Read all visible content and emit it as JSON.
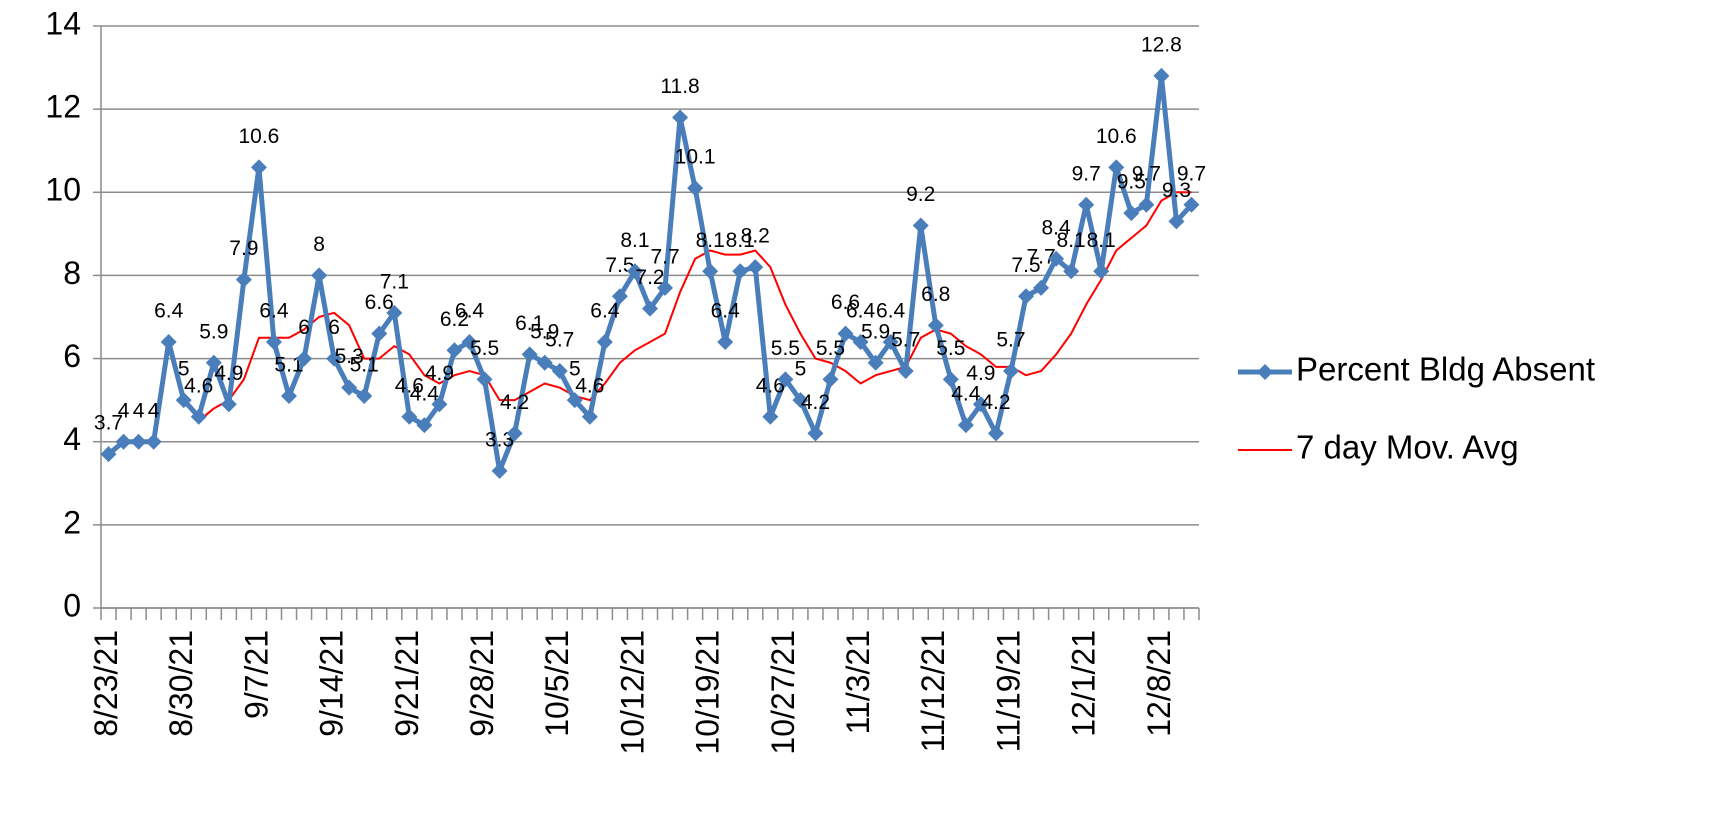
{
  "chart_data": {
    "type": "line",
    "categories": [
      "8/23/21",
      null,
      null,
      null,
      null,
      "8/30/21",
      null,
      null,
      null,
      null,
      "9/7/21",
      null,
      null,
      null,
      null,
      "9/14/21",
      null,
      null,
      null,
      null,
      "9/21/21",
      null,
      null,
      null,
      null,
      "9/28/21",
      null,
      null,
      null,
      null,
      "10/5/21",
      null,
      null,
      null,
      null,
      "10/12/21",
      null,
      null,
      null,
      null,
      "10/19/21",
      null,
      null,
      null,
      null,
      "10/27/21",
      null,
      null,
      null,
      null,
      "11/3/21",
      null,
      null,
      null,
      null,
      "11/12/21",
      null,
      null,
      null,
      null,
      "11/19/21",
      null,
      null,
      null,
      null,
      "12/1/21",
      null,
      null,
      null,
      null,
      "12/8/21",
      null,
      null
    ],
    "series": [
      {
        "name": "Percent Bldg Absent",
        "color": "#4a7ebb",
        "marker": "diamond",
        "data_labels": true,
        "values": [
          3.7,
          4,
          4,
          4,
          6.4,
          5,
          4.6,
          5.9,
          4.9,
          7.9,
          10.6,
          6.4,
          5.1,
          6,
          8,
          6,
          5.3,
          5.1,
          6.6,
          7.1,
          4.6,
          4.4,
          4.9,
          6.2,
          6.4,
          5.5,
          3.3,
          4.2,
          6.1,
          5.9,
          5.7,
          5,
          4.6,
          6.4,
          7.5,
          8.1,
          7.2,
          7.7,
          11.8,
          10.1,
          8.1,
          6.4,
          8.1,
          8.2,
          4.6,
          5.5,
          5,
          4.2,
          5.5,
          6.6,
          6.4,
          5.9,
          6.4,
          5.7,
          9.2,
          6.8,
          5.5,
          4.4,
          4.9,
          4.2,
          5.7,
          7.5,
          7.7,
          8.4,
          8.1,
          9.7,
          8.1,
          10.6,
          9.5,
          9.7,
          12.8,
          9.3,
          9.7
        ]
      },
      {
        "name": "7 day Mov. Avg",
        "color": "#ff0000",
        "marker": "none",
        "data_labels": false,
        "values": [
          null,
          null,
          null,
          null,
          null,
          null,
          4.5,
          4.8,
          5.0,
          5.5,
          6.5,
          6.5,
          6.5,
          6.7,
          7.0,
          7.1,
          6.8,
          6.0,
          6.0,
          6.3,
          6.1,
          5.6,
          5.4,
          5.6,
          5.7,
          5.6,
          5.0,
          5.0,
          5.2,
          5.4,
          5.3,
          5.1,
          5.0,
          5.4,
          5.9,
          6.2,
          6.4,
          6.6,
          7.6,
          8.4,
          8.6,
          8.5,
          8.5,
          8.6,
          8.2,
          7.3,
          6.6,
          6.0,
          5.9,
          5.7,
          5.4,
          5.6,
          5.7,
          5.8,
          6.5,
          6.7,
          6.6,
          6.3,
          6.1,
          5.8,
          5.8,
          5.6,
          5.7,
          6.1,
          6.6,
          7.3,
          7.9,
          8.6,
          8.9,
          9.2,
          9.8,
          10.0,
          10.0
        ]
      }
    ],
    "ylim": [
      0,
      14
    ],
    "yticks": [
      0,
      2,
      4,
      6,
      8,
      10,
      12,
      14
    ],
    "grid": true,
    "legend": "right"
  }
}
